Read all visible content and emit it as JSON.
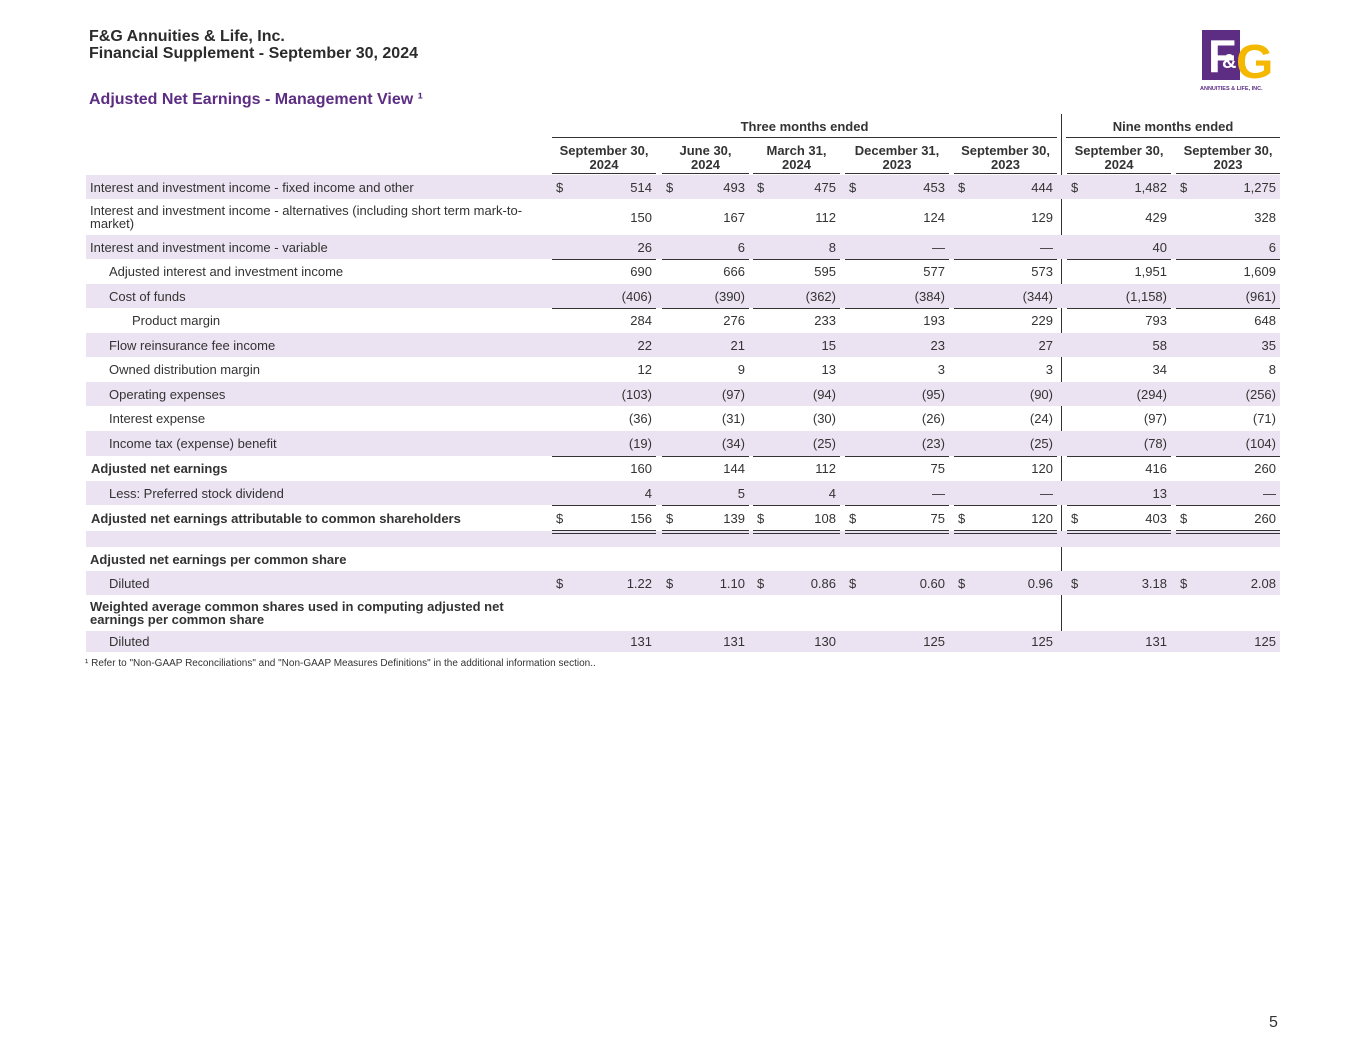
{
  "header": {
    "company": "F&G Annuities & Life, Inc.",
    "subtitle": "Financial Supplement - September 30, 2024",
    "logo_text_big": "F&G",
    "logo_text_small": "ANNUITIES & LIFE, INC.",
    "logo_colors": {
      "purple": "#5c2d83",
      "yellow": "#f5b800"
    }
  },
  "section_title": "Adjusted Net Earnings - Management View ¹",
  "groups": {
    "three": "Three months ended",
    "nine": "Nine months ended"
  },
  "columns": [
    {
      "l1": "September 30,",
      "l2": "2024"
    },
    {
      "l1": "June 30,",
      "l2": "2024"
    },
    {
      "l1": "March 31,",
      "l2": "2024"
    },
    {
      "l1": "December 31,",
      "l2": "2023"
    },
    {
      "l1": "September 30,",
      "l2": "2023"
    },
    {
      "l1": "September 30,",
      "l2": "2024"
    },
    {
      "l1": "September 30,",
      "l2": "2023"
    }
  ],
  "rows": [
    {
      "label": "Interest and investment income - fixed income and other",
      "cur": "$",
      "values": [
        "514",
        "493",
        "475",
        "453",
        "444",
        "1,482",
        "1,275"
      ]
    },
    {
      "label": "Interest and investment income - alternatives (including short term mark-to-market)",
      "values": [
        "150",
        "167",
        "112",
        "124",
        "129",
        "429",
        "328"
      ]
    },
    {
      "label": "Interest and investment income - variable",
      "values": [
        "26",
        "6",
        "8",
        "—",
        "—",
        "40",
        "6"
      ]
    },
    {
      "label": "Adjusted interest and investment income",
      "values": [
        "690",
        "666",
        "595",
        "577",
        "573",
        "1,951",
        "1,609"
      ]
    },
    {
      "label": "Cost of funds",
      "values": [
        "(406)",
        "(390)",
        "(362)",
        "(384)",
        "(344)",
        "(1,158)",
        "(961)"
      ]
    },
    {
      "label": "Product margin",
      "values": [
        "284",
        "276",
        "233",
        "193",
        "229",
        "793",
        "648"
      ]
    },
    {
      "label": "Flow reinsurance fee income",
      "values": [
        "22",
        "21",
        "15",
        "23",
        "27",
        "58",
        "35"
      ]
    },
    {
      "label": "Owned distribution margin",
      "values": [
        "12",
        "9",
        "13",
        "3",
        "3",
        "34",
        "8"
      ]
    },
    {
      "label": "Operating expenses",
      "values": [
        "(103)",
        "(97)",
        "(94)",
        "(95)",
        "(90)",
        "(294)",
        "(256)"
      ]
    },
    {
      "label": "Interest expense",
      "values": [
        "(36)",
        "(31)",
        "(30)",
        "(26)",
        "(24)",
        "(97)",
        "(71)"
      ]
    },
    {
      "label": "Income tax (expense) benefit",
      "values": [
        "(19)",
        "(34)",
        "(25)",
        "(23)",
        "(25)",
        "(78)",
        "(104)"
      ]
    },
    {
      "label": "Adjusted net earnings",
      "values": [
        "160",
        "144",
        "112",
        "75",
        "120",
        "416",
        "260"
      ]
    },
    {
      "label": "Less: Preferred stock dividend",
      "values": [
        "4",
        "5",
        "4",
        "—",
        "—",
        "13",
        "—"
      ]
    },
    {
      "label": "Adjusted net earnings attributable to common shareholders",
      "cur": "$",
      "values": [
        "156",
        "139",
        "108",
        "75",
        "120",
        "403",
        "260"
      ]
    },
    {
      "label": ""
    },
    {
      "label": "Adjusted net earnings per common share"
    },
    {
      "label": "Diluted",
      "cur": "$",
      "values": [
        "1.22",
        "1.10",
        "0.86",
        "0.60",
        "0.96",
        "3.18",
        "2.08"
      ]
    },
    {
      "label": "Weighted average common shares used in computing adjusted net earnings per common share"
    },
    {
      "label": "Diluted",
      "values": [
        "131",
        "131",
        "130",
        "125",
        "125",
        "131",
        "125"
      ]
    }
  ],
  "footnote": "¹ Refer to \"Non-GAAP Reconciliations\" and \"Non-GAAP Measures Definitions\" in the additional information section..",
  "page_number": "5"
}
